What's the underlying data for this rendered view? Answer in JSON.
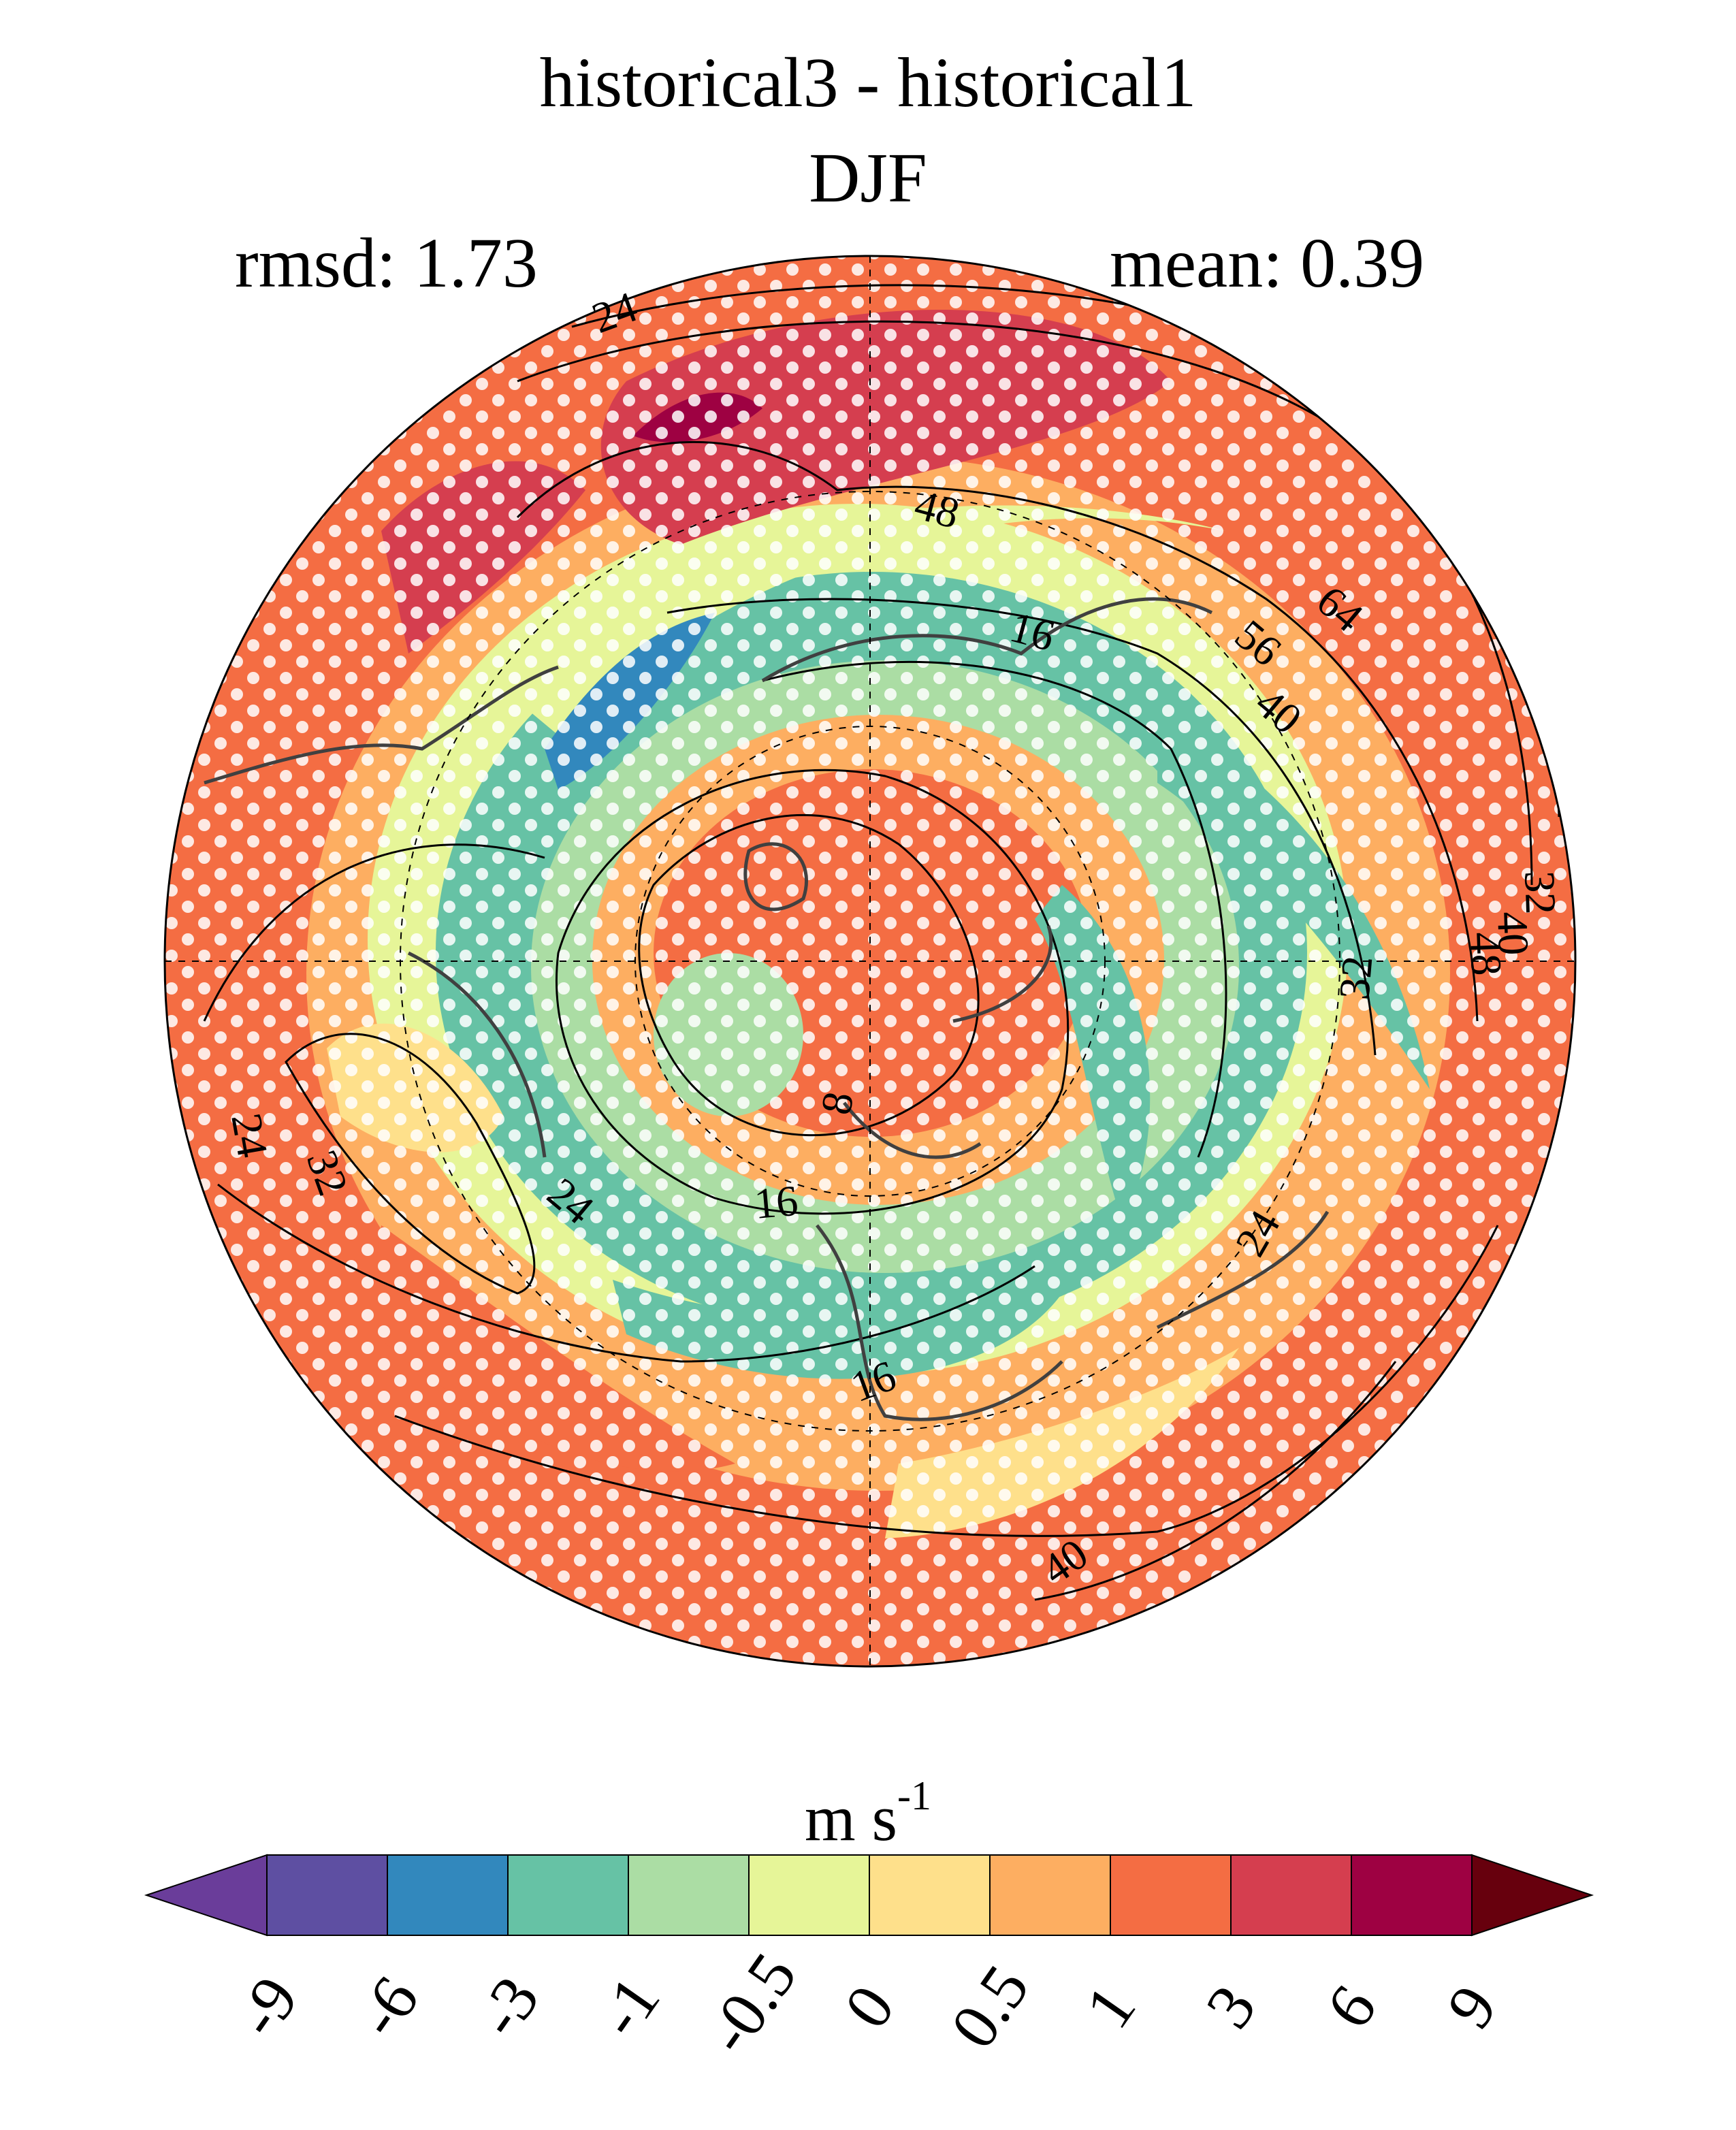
{
  "figure": {
    "title_line1": "historical3 - historical1",
    "title_line2": "DJF",
    "rmsd_text": "rmsd: 1.73",
    "mean_text": "mean: 0.39"
  },
  "map": {
    "projection": "north-polar-stereographic",
    "contour_labels": [
      "24",
      "48",
      "16",
      "64",
      "56",
      "40",
      "32",
      "40",
      "48",
      "32",
      "8",
      "16",
      "24",
      "24",
      "32",
      "16",
      "24",
      "40"
    ]
  },
  "colorbar": {
    "units": "m s",
    "units_exponent": "-1",
    "tick_labels": [
      "-9",
      "-6",
      "-3",
      "-1",
      "-0.5",
      "0",
      "0.5",
      "1",
      "3",
      "6",
      "9"
    ],
    "colors": [
      "#5e4fa2",
      "#3288bd",
      "#66c2a5",
      "#abdda4",
      "#e6f598",
      "#fee08b",
      "#fdae61",
      "#f46d43",
      "#d53e4f",
      "#9e0142"
    ],
    "under_color": "#6a3d9a",
    "over_color": "#67000d"
  }
}
